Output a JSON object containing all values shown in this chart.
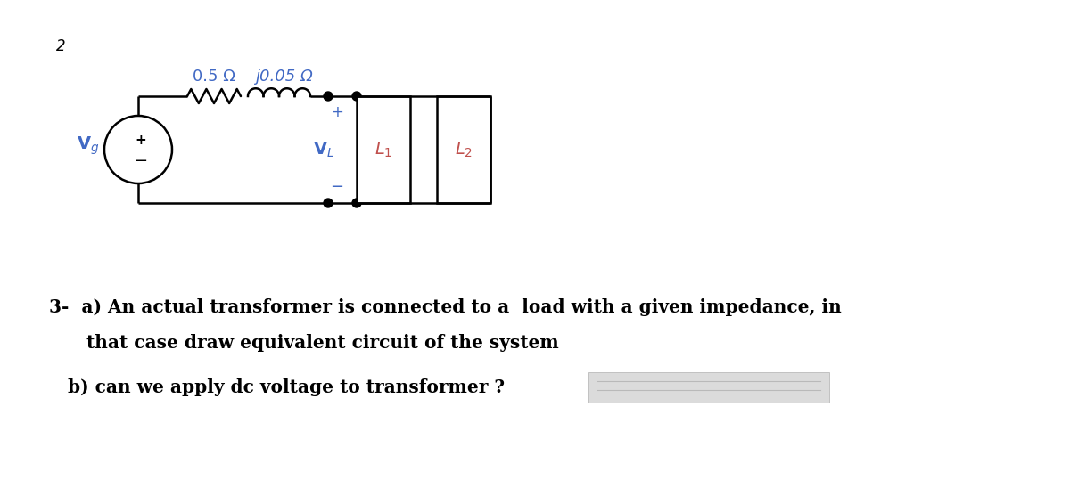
{
  "bg_color": "#ffffff",
  "circuit_color": "#000000",
  "blue_color": "#4169C4",
  "orange_color": "#C0504D",
  "fig_width": 12.0,
  "fig_height": 5.48,
  "label_R": "0.5 Ω",
  "label_jL": "j0.05 Ω",
  "text_q3": "3-  a) An actual transformer is connected to a  load with a given impedance, in",
  "text_q3b": "      that case draw equivalent circuit of the system",
  "text_q3c": "   b) can we apply dc voltage to transformer ?",
  "small_mark": "2"
}
